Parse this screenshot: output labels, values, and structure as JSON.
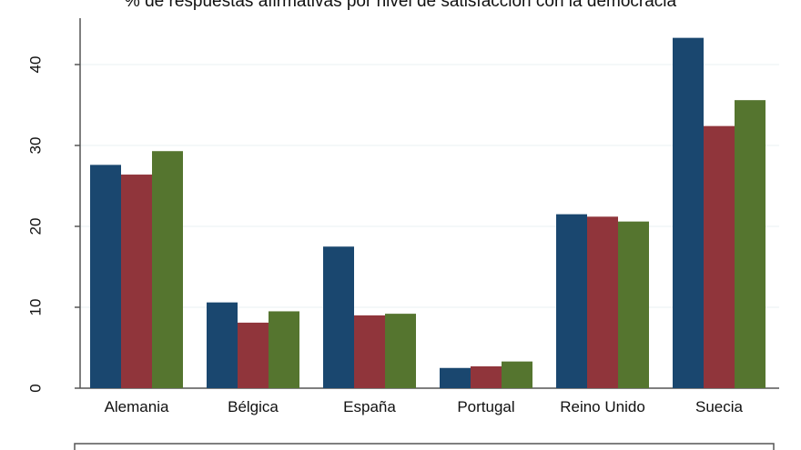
{
  "chart_data": {
    "type": "bar",
    "title": "% de respuestas afirmativas por nivel de satisfacción con la democracia",
    "categories": [
      "Alemania",
      "Bélgica",
      "España",
      "Portugal",
      "Reino Unido",
      "Suecia"
    ],
    "series": [
      {
        "color": "#1a476f",
        "values": [
          27.6,
          10.6,
          17.5,
          2.5,
          21.5,
          43.3
        ]
      },
      {
        "color": "#90353b",
        "values": [
          26.4,
          8.1,
          9.0,
          2.7,
          21.2,
          32.4
        ]
      },
      {
        "color": "#55752f",
        "values": [
          29.3,
          9.5,
          9.2,
          3.3,
          20.6,
          35.6
        ]
      }
    ],
    "ylim": [
      0,
      45
    ],
    "yticks": [
      0,
      10,
      20,
      30,
      40
    ],
    "grid": true,
    "legend": "bottom"
  }
}
